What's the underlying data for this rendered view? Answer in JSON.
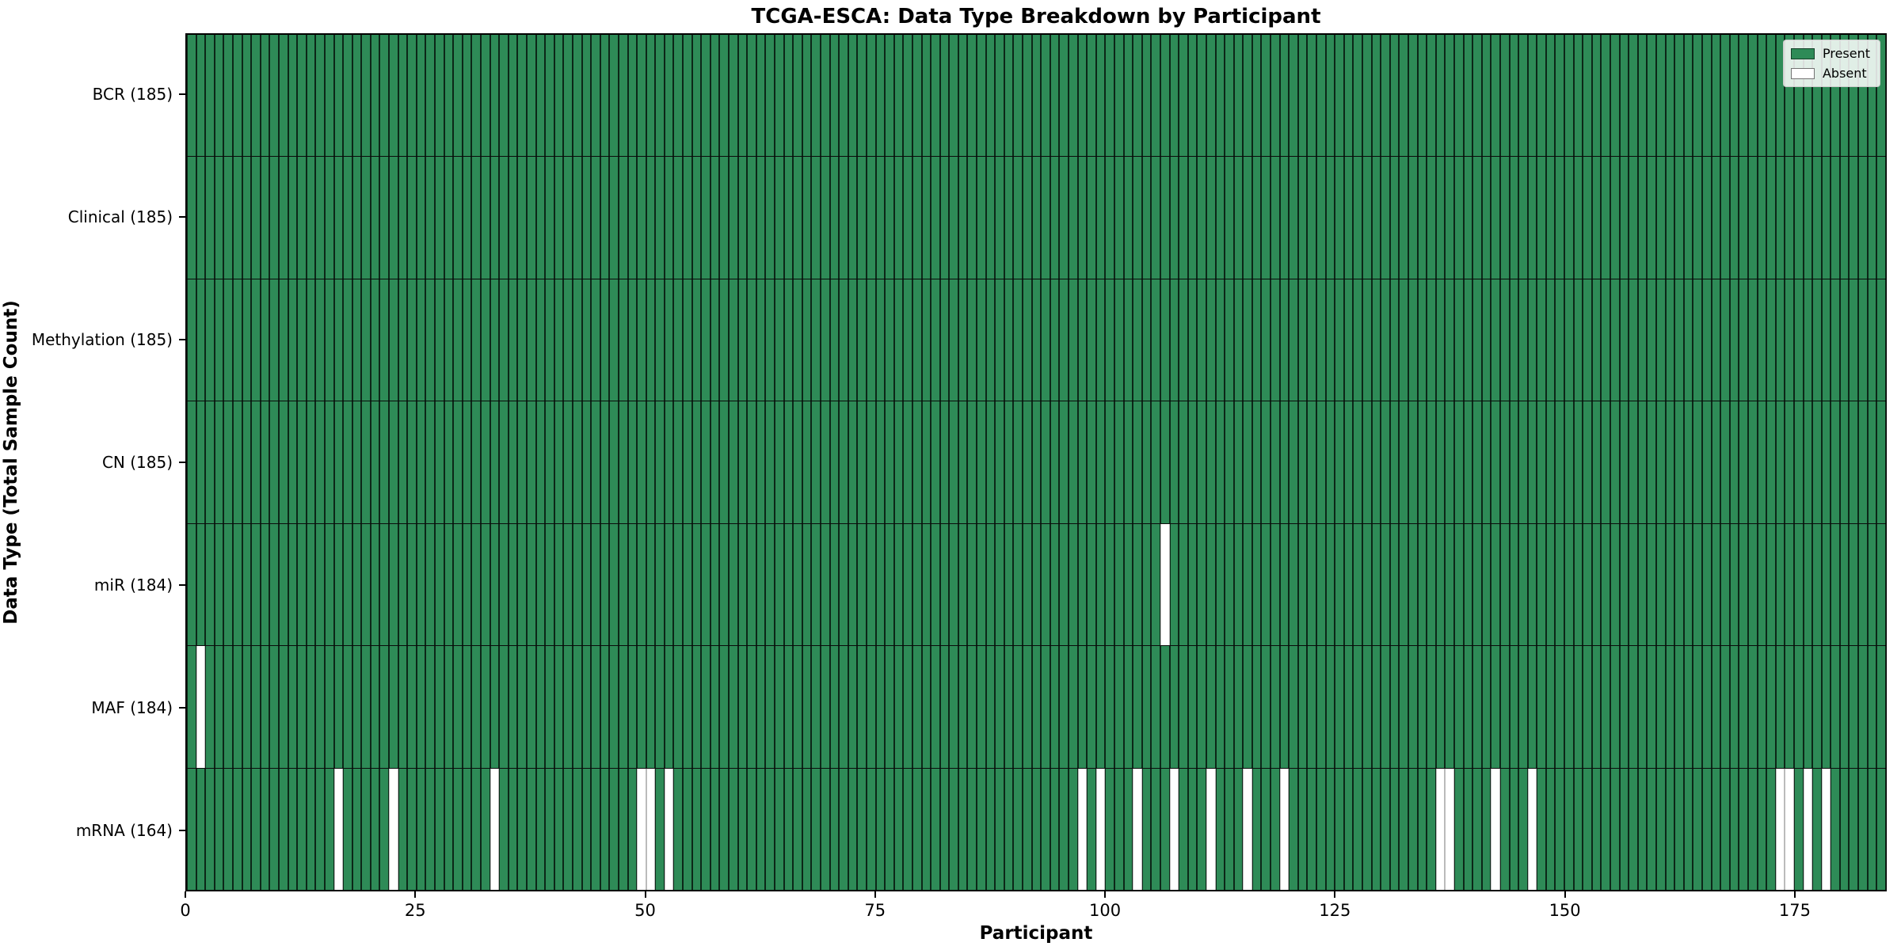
{
  "chart_data": {
    "type": "heatmap",
    "title": "TCGA-ESCA: Data Type Breakdown by Participant",
    "xlabel": "Participant",
    "ylabel": "Data Type (Total Sample Count)",
    "n_participants": 185,
    "x_ticks": [
      0,
      25,
      50,
      75,
      100,
      125,
      150,
      175
    ],
    "x_range": [
      0,
      185
    ],
    "grid": false,
    "legend_position": "upper right",
    "legend_entries": [
      {
        "label": "Present",
        "value": "present"
      },
      {
        "label": "Absent",
        "value": "absent"
      }
    ],
    "rows": [
      {
        "data_type": "BCR",
        "label": "BCR (185)",
        "present_count": 185,
        "absent_participants": []
      },
      {
        "data_type": "Clinical",
        "label": "Clinical (185)",
        "present_count": 185,
        "absent_participants": []
      },
      {
        "data_type": "Methylation",
        "label": "Methylation (185)",
        "present_count": 185,
        "absent_participants": []
      },
      {
        "data_type": "CN",
        "label": "CN (185)",
        "present_count": 185,
        "absent_participants": []
      },
      {
        "data_type": "miR",
        "label": "miR (184)",
        "present_count": 184,
        "absent_participants": [
          106
        ]
      },
      {
        "data_type": "MAF",
        "label": "MAF (184)",
        "present_count": 184,
        "absent_participants": [
          1
        ]
      },
      {
        "data_type": "mRNA",
        "label": "mRNA (164)",
        "present_count": 164,
        "absent_participants": [
          16,
          22,
          33,
          49,
          50,
          52,
          97,
          99,
          103,
          107,
          111,
          115,
          119,
          136,
          137,
          142,
          146,
          173,
          174,
          176,
          178
        ]
      }
    ],
    "colors": {
      "present": "#2e8b57",
      "absent": "#ffffff",
      "cell_edge": "#1b1b1b",
      "row_separator": "#0a0a0a",
      "axis_spine": "#000000"
    }
  }
}
